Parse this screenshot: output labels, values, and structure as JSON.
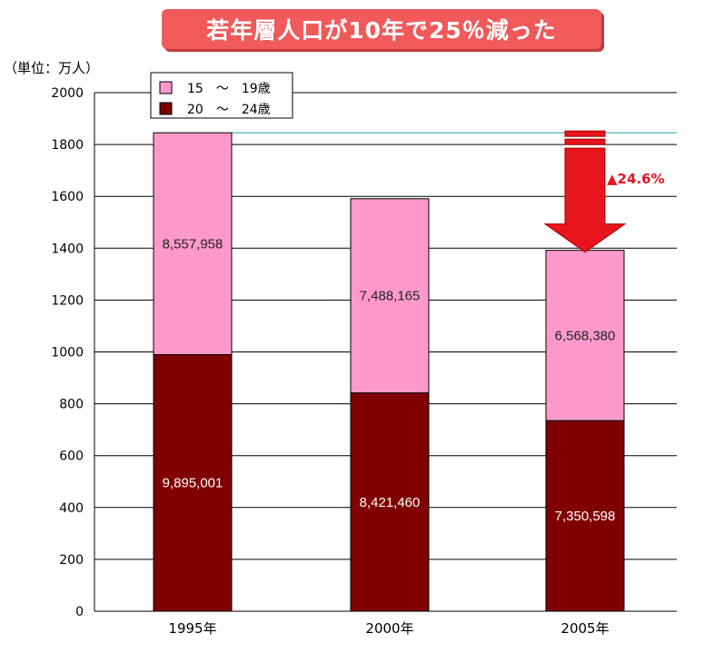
{
  "chart_data": {
    "type": "bar",
    "stacked": true,
    "title": "若年層人口が10年で25％減った",
    "unit_label": "（単位：万人）",
    "categories": [
      "1995年",
      "2000年",
      "2005年"
    ],
    "series": [
      {
        "name": "20　～　24歳",
        "color": "#800000",
        "values": [
          989.5,
          842.1,
          735.1
        ],
        "labels": [
          "9,895,001",
          "8,421,460",
          "7,350,598"
        ]
      },
      {
        "name": "15　～　19歳",
        "color": "#ff99cc",
        "values": [
          855.8,
          748.8,
          656.8
        ],
        "labels": [
          "8,557,958",
          "7,488,165",
          "6,568,380"
        ]
      }
    ],
    "ylim": [
      0,
      2000
    ],
    "yticks": [
      0,
      200,
      400,
      600,
      800,
      1000,
      1200,
      1400,
      1600,
      1800,
      2000
    ],
    "grid": true,
    "legend_position": "top-left",
    "reference_line_value": 1845.3,
    "annotation": "▲24.6%"
  }
}
